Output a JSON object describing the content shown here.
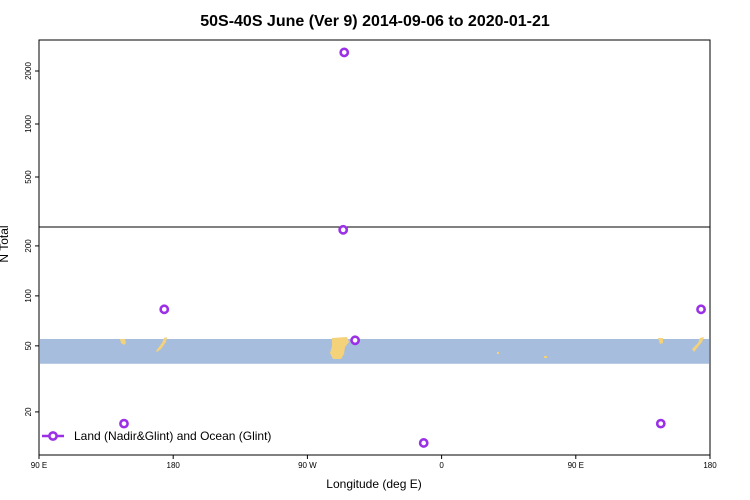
{
  "chart_data": {
    "type": "scatter",
    "title": "50S-40S June (Ver 9)   2014-09-06 to 2020-01-21",
    "xlabel": "Longitude (deg E)",
    "ylabel": "N Total",
    "x_ticks": [
      {
        "lon": 90,
        "label": "90 E"
      },
      {
        "lon": 180,
        "label": "180"
      },
      {
        "lon": 270,
        "label": "90 W"
      },
      {
        "lon": 360,
        "label": "0"
      },
      {
        "lon": 450,
        "label": "90 E"
      },
      {
        "lon": 540,
        "label": "180"
      }
    ],
    "xlim": [
      90,
      540
    ],
    "panels": [
      {
        "name": "upper",
        "scale": "log",
        "ylim": [
          260,
          3000
        ],
        "y_ticks": [
          500,
          1000,
          2000
        ]
      },
      {
        "name": "lower",
        "scale": "log",
        "ylim": [
          11,
          260
        ],
        "y_ticks": [
          20,
          50,
          100,
          200
        ]
      }
    ],
    "ocean_band": {
      "ymin": 39,
      "ymax": 55,
      "color": "#a7bddd"
    },
    "land_color": "#f4d27a",
    "series": [
      {
        "name": "Land (Nadir&Glint) and Ocean (Glint)",
        "color": "#9b30e6",
        "points": [
          {
            "x": 147,
            "y": 17
          },
          {
            "x": 174,
            "y": 83
          },
          {
            "x": 294,
            "y": 250
          },
          {
            "x": 294.7,
            "y": 2550
          },
          {
            "x": 302,
            "y": 54
          },
          {
            "x": 348,
            "y": 13
          },
          {
            "x": 507,
            "y": 17
          },
          {
            "x": 534,
            "y": 83
          }
        ]
      }
    ],
    "legend": {
      "position": "bottom-left"
    }
  }
}
